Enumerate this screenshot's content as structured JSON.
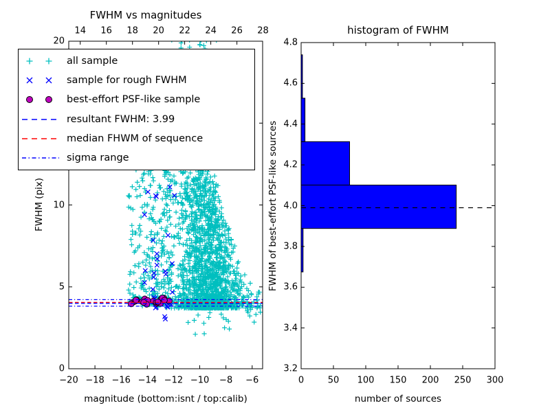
{
  "figure": {
    "background": "#ffffff"
  },
  "chart_data": [
    {
      "type": "scatter",
      "title": "FWHM vs magnitudes",
      "xlabel": "magnitude (bottom:isnt / top:calib)",
      "ylabel": "FWHM (pix)",
      "xlim": [
        -20,
        -5.2
      ],
      "ylim": [
        0,
        20
      ],
      "top_xlim": [
        13.12,
        27.97
      ],
      "x_ticks_bottom": [
        {
          "v": -20,
          "label": "−20"
        },
        {
          "v": -18,
          "label": "−18"
        },
        {
          "v": -16,
          "label": "−16"
        },
        {
          "v": -14,
          "label": "−14"
        },
        {
          "v": -12,
          "label": "−12"
        },
        {
          "v": -10,
          "label": "−10"
        },
        {
          "v": -8,
          "label": "−8"
        },
        {
          "v": -6,
          "label": "−6"
        }
      ],
      "x_ticks_top": [
        {
          "v": 14,
          "label": "14"
        },
        {
          "v": 16,
          "label": "16"
        },
        {
          "v": 18,
          "label": "18"
        },
        {
          "v": 20,
          "label": "20"
        },
        {
          "v": 22,
          "label": "22"
        },
        {
          "v": 24,
          "label": "24"
        },
        {
          "v": 26,
          "label": "26"
        },
        {
          "v": 28,
          "label": "28"
        }
      ],
      "y_ticks": [
        {
          "v": 0,
          "label": "0"
        },
        {
          "v": 5,
          "label": "5"
        },
        {
          "v": 10,
          "label": "10"
        },
        {
          "v": 15,
          "label": "15"
        },
        {
          "v": 20,
          "label": "20"
        }
      ],
      "legend": [
        {
          "label": "all sample",
          "marker": "plus",
          "color": "#00bfbf"
        },
        {
          "label": "sample for rough FWHM",
          "marker": "x",
          "color": "#0000ff"
        },
        {
          "label": "best-effort PSF-like sample",
          "marker": "circle",
          "color": "#bf00bf",
          "edge": "#000000"
        },
        {
          "label": "resultant FWHM: 3.99",
          "marker": "dashed",
          "color": "#0000ff"
        },
        {
          "label": "median FHWM of sequence",
          "marker": "dashed",
          "color": "#ff0000"
        },
        {
          "label": "sigma range",
          "marker": "dashdot",
          "color": "#0000ff"
        }
      ],
      "hlines": [
        {
          "name": "sigma-range-upper",
          "y": 4.22,
          "style": "dashdot",
          "color": "#0000ff"
        },
        {
          "name": "median-fwhm",
          "y": 4.05,
          "style": "dashed",
          "color": "#ff0000"
        },
        {
          "name": "resultant-fwhm",
          "y": 3.99,
          "style": "dashed",
          "color": "#0000ff"
        },
        {
          "name": "sigma-range-lower",
          "y": 3.82,
          "style": "dashdot",
          "color": "#0000ff"
        }
      ],
      "series": [
        {
          "name": "all sample",
          "marker": "plus",
          "color": "#00bfbf",
          "clusters": [
            {
              "n": 1350,
              "kind": "core",
              "magMu": -9.35,
              "magSigma": 1.15,
              "magMin": -13.3,
              "magMax": -5.45,
              "fMin": 3.7,
              "fMax": 12.4,
              "pow": 2.1,
              "envStart": -9.4,
              "envSlope": 2.3
            },
            {
              "n": 320,
              "kind": "core",
              "magMu": -10.0,
              "magSigma": 1.75,
              "magMin": -13.4,
              "magMax": -5.5,
              "fMin": 3.7,
              "fMax": 10.8,
              "pow": 1.5,
              "envStart": -9.4,
              "envSlope": 2.3
            },
            {
              "n": 90,
              "kind": "uniform",
              "magMin": -12.6,
              "magMax": -8.6,
              "fMin": 10.5,
              "fMax": 14.5,
              "pow": 1.9
            },
            {
              "n": 28,
              "kind": "uniform",
              "magMin": -12.4,
              "magMax": -9.0,
              "fMin": 14.5,
              "fMax": 17.0,
              "pow": 1.3
            },
            {
              "n": 72,
              "kind": "uniform",
              "magMin": -15.45,
              "magMax": -14.2,
              "fMin": 3.8,
              "fMax": 12.3,
              "pow": 1.2
            },
            {
              "n": 165,
              "kind": "uniform",
              "magMin": -14.25,
              "magMax": -12.3,
              "fMin": 3.9,
              "fMax": 12.3,
              "pow": 1.9
            },
            {
              "n": 50,
              "kind": "topband",
              "magMu": -10.4,
              "magSigma": 1.4,
              "magMin": -14.2,
              "magMax": -8.7,
              "fMin": 17.0,
              "fMax": 20.1,
              "pow": 1.9
            },
            {
              "n": 28,
              "kind": "gaussF",
              "magMin": -6.7,
              "magMax": -5.35,
              "fMu": 4.1,
              "fSigma": 0.75,
              "fMin": 2.7,
              "fMax": 5.8
            },
            {
              "n": 14,
              "kind": "uniform",
              "magMin": -11.5,
              "magMax": -7.6,
              "fMin": 2.0,
              "fMax": 3.5,
              "pow": 1.0
            }
          ]
        },
        {
          "name": "sample for rough FWHM",
          "marker": "x",
          "color": "#0000ff",
          "clusters": [
            {
              "n": 32,
              "kind": "columns",
              "columns": [
                -14.15,
                -13.5,
                -13.15,
                -12.55,
                -12.2
              ],
              "colSigma": 0.12,
              "fMin": 3.0,
              "fMax": 12.3,
              "pow": 1.35
            }
          ]
        },
        {
          "name": "best-effort PSF-like sample",
          "marker": "circle",
          "color": "#bf00bf",
          "edge": "#000000",
          "clusters": [
            {
              "n": 22,
              "kind": "gaussF",
              "magMin": -15.25,
              "magMax": -12.05,
              "fMu": 4.13,
              "fSigma": 0.1,
              "fMin": 3.92,
              "fMax": 4.4
            }
          ]
        }
      ]
    },
    {
      "type": "bar",
      "orientation": "horizontal",
      "title": "histogram of FWHM",
      "xlabel": "number of sources",
      "ylabel": "FWHM of best-effort PSF-like sources",
      "xlim": [
        0,
        300
      ],
      "ylim": [
        3.2,
        4.8
      ],
      "x_ticks": [
        {
          "v": 0,
          "label": "0"
        },
        {
          "v": 50,
          "label": "50"
        },
        {
          "v": 100,
          "label": "100"
        },
        {
          "v": 150,
          "label": "150"
        },
        {
          "v": 200,
          "label": "200"
        },
        {
          "v": 250,
          "label": "250"
        },
        {
          "v": 300,
          "label": "300"
        }
      ],
      "y_ticks": [
        {
          "v": 3.2,
          "label": "3.2"
        },
        {
          "v": 3.4,
          "label": "3.4"
        },
        {
          "v": 3.6,
          "label": "3.6"
        },
        {
          "v": 3.8,
          "label": "3.8"
        },
        {
          "v": 4.0,
          "label": "4.0"
        },
        {
          "v": 4.2,
          "label": "4.2"
        },
        {
          "v": 4.4,
          "label": "4.4"
        },
        {
          "v": 4.6,
          "label": "4.6"
        },
        {
          "v": 4.8,
          "label": "4.8"
        }
      ],
      "bar_color": "#0000ff",
      "bar_edge": "#000000",
      "bins": [
        {
          "lo": 3.675,
          "hi": 3.888,
          "count": 3
        },
        {
          "lo": 3.888,
          "hi": 4.101,
          "count": 240
        },
        {
          "lo": 4.101,
          "hi": 4.314,
          "count": 75
        },
        {
          "lo": 4.314,
          "hi": 4.527,
          "count": 6
        },
        {
          "lo": 4.527,
          "hi": 4.74,
          "count": 2
        }
      ],
      "median_line": {
        "y": 3.99,
        "style": "dashed",
        "color": "#000000"
      }
    }
  ]
}
